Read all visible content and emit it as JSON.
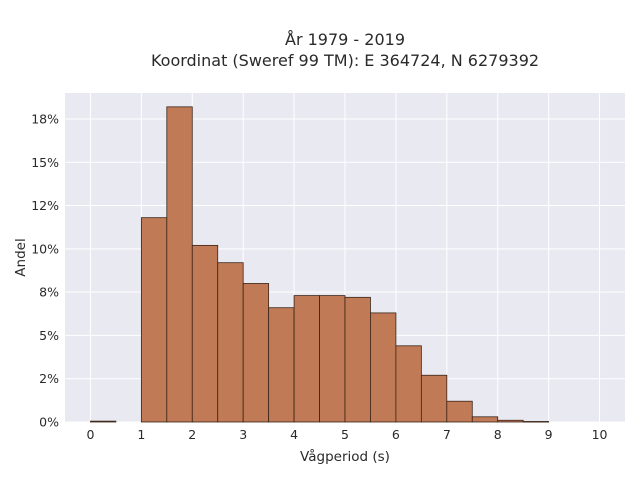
{
  "chart_data": {
    "type": "bar",
    "title_lines": [
      "År 1979 - 2019",
      "Koordinat (Sweref 99 TM): E 364724, N 6279392"
    ],
    "xlabel": "Vågperiod (s)",
    "ylabel": "Andel",
    "x_ticks": [
      "0",
      "1",
      "2",
      "3",
      "4",
      "5",
      "6",
      "7",
      "8",
      "9",
      "10"
    ],
    "y_ticks": [
      {
        "value": 0,
        "label": "0%"
      },
      {
        "value": 2.5,
        "label": "2%"
      },
      {
        "value": 5,
        "label": "5%"
      },
      {
        "value": 7.5,
        "label": "8%"
      },
      {
        "value": 10,
        "label": "10%"
      },
      {
        "value": 12.5,
        "label": "12%"
      },
      {
        "value": 15,
        "label": "15%"
      },
      {
        "value": 17.5,
        "label": "18%"
      }
    ],
    "xlim": [
      -0.5,
      10.5
    ],
    "ylim": [
      0,
      19.0
    ],
    "grid": true,
    "bar_color": "#c07a56",
    "bar_edge_color": "#3a2418",
    "background_color": "#e9e9f2",
    "bins": [
      {
        "x0": 0.0,
        "x1": 0.5,
        "value": 0.05
      },
      {
        "x0": 1.0,
        "x1": 1.5,
        "value": 11.8
      },
      {
        "x0": 1.5,
        "x1": 2.0,
        "value": 18.2
      },
      {
        "x0": 2.0,
        "x1": 2.5,
        "value": 10.2
      },
      {
        "x0": 2.5,
        "x1": 3.0,
        "value": 9.2
      },
      {
        "x0": 3.0,
        "x1": 3.5,
        "value": 8.0
      },
      {
        "x0": 3.5,
        "x1": 4.0,
        "value": 6.6
      },
      {
        "x0": 4.0,
        "x1": 4.5,
        "value": 7.3
      },
      {
        "x0": 4.5,
        "x1": 5.0,
        "value": 7.3
      },
      {
        "x0": 5.0,
        "x1": 5.5,
        "value": 7.2
      },
      {
        "x0": 5.5,
        "x1": 6.0,
        "value": 6.3
      },
      {
        "x0": 6.0,
        "x1": 6.5,
        "value": 4.4
      },
      {
        "x0": 6.5,
        "x1": 7.0,
        "value": 2.7
      },
      {
        "x0": 7.0,
        "x1": 7.5,
        "value": 1.2
      },
      {
        "x0": 7.5,
        "x1": 8.0,
        "value": 0.3
      },
      {
        "x0": 8.0,
        "x1": 8.5,
        "value": 0.1
      },
      {
        "x0": 8.5,
        "x1": 9.0,
        "value": 0.03
      }
    ]
  }
}
